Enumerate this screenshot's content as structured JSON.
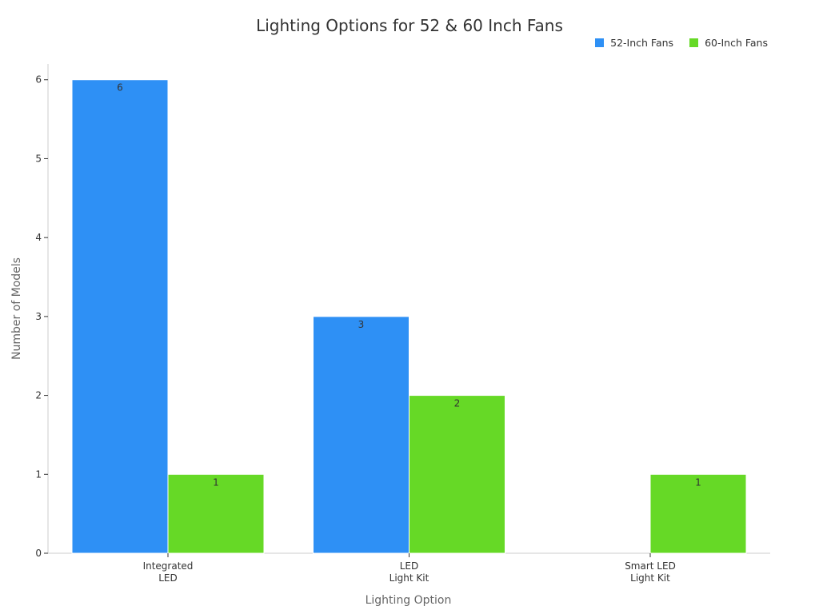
{
  "chart_data": {
    "type": "bar",
    "title": "Lighting Options for 52 & 60 Inch Fans",
    "xlabel": "Lighting Option",
    "ylabel": "Number of Models",
    "categories": [
      [
        "Integrated",
        "LED"
      ],
      [
        "LED",
        "Light Kit"
      ],
      [
        "Smart LED",
        "Light Kit"
      ]
    ],
    "series": [
      {
        "name": "52-Inch Fans",
        "color": "#2e90f5",
        "values": [
          6,
          3,
          0
        ]
      },
      {
        "name": "60-Inch Fans",
        "color": "#66d926",
        "values": [
          1,
          2,
          1
        ]
      }
    ],
    "data_labels": [
      [
        "6",
        "3",
        ""
      ],
      [
        "1",
        "2",
        "1"
      ]
    ],
    "ylim": [
      0,
      6.2
    ],
    "yticks": [
      0,
      1,
      2,
      3,
      4,
      5,
      6
    ],
    "grid": false,
    "legend_position": "top-right"
  }
}
